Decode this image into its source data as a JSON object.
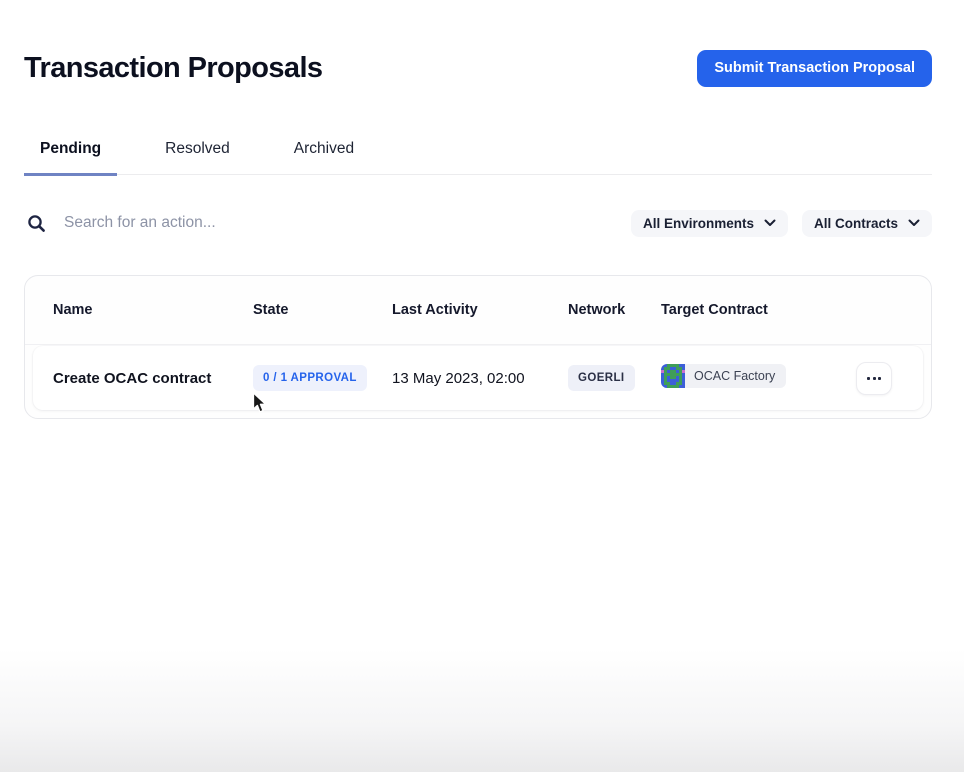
{
  "page": {
    "title": "Transaction Proposals",
    "submit_button_label": "Submit Transaction Proposal"
  },
  "tabs": [
    {
      "label": "Pending",
      "active": true
    },
    {
      "label": "Resolved",
      "active": false
    },
    {
      "label": "Archived",
      "active": false
    }
  ],
  "search": {
    "placeholder": "Search for an action...",
    "value": ""
  },
  "filters": {
    "environments_label": "All Environments",
    "contracts_label": "All Contracts"
  },
  "table": {
    "columns": [
      "Name",
      "State",
      "Last Activity",
      "Network",
      "Target Contract"
    ],
    "rows": [
      {
        "name": "Create OCAC contract",
        "state": "0 / 1 APPROVAL",
        "last_activity": "13 May 2023, 02:00",
        "network": "GOERLI",
        "target_contract": "OCAC Factory"
      }
    ]
  },
  "icons": {
    "search": "search-icon",
    "chevron_down": "chevron-down-icon",
    "ellipsis": "ellipsis-icon",
    "identicon": "contract-identicon",
    "identicon_grid": [
      "bbggggbb",
      "bggbbggb",
      "pgbggbgp",
      "bggggggb",
      "bgbggbgb",
      "bgbbbbgb",
      "bggbbggb",
      "bbggggbb"
    ],
    "identicon_colors": {
      "g": "#3f9e58",
      "b": "#3c5fd8",
      "p": "#c96fd0"
    }
  },
  "colors": {
    "accent_blue": "#2563eb",
    "tab_underline": "#6f83c3",
    "approval_badge_bg": "#eef1fc",
    "network_badge_bg": "#eef0f8",
    "chip_bg": "#f0f1f5",
    "card_border": "#e7e8ec"
  }
}
